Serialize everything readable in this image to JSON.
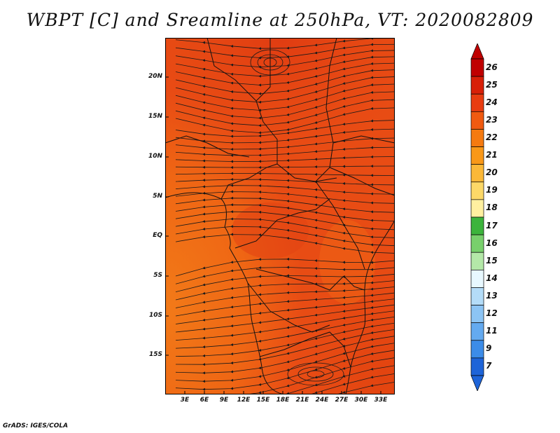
{
  "title": "WBPT [C] and Sreamline at 250hPa, VT: 2020082809",
  "footer": "GrADS: IGES/COLA",
  "lat_labels": [
    "20N",
    "15N",
    "10N",
    "5N",
    "EQ",
    "5S",
    "10S",
    "15S"
  ],
  "lon_labels": [
    "3E",
    "6E",
    "9E",
    "12E",
    "15E",
    "18E",
    "21E",
    "24E",
    "27E",
    "30E",
    "33E"
  ],
  "colorbar": {
    "labels": [
      "26",
      "25",
      "24",
      "23",
      "22",
      "21",
      "20",
      "19",
      "18",
      "17",
      "16",
      "15",
      "14",
      "13",
      "12",
      "11",
      "9",
      "7"
    ],
    "colors": [
      "#c00000",
      "#d82008",
      "#e83c10",
      "#f05a10",
      "#f57a10",
      "#f99818",
      "#fbb838",
      "#fcd868",
      "#fff0a0",
      "#3cb43c",
      "#78d06c",
      "#b4e8a8",
      "#e8f8ff",
      "#b4dcf8",
      "#8cc4f4",
      "#64aaf0",
      "#3c8ce8",
      "#1e64d8"
    ]
  },
  "map": {
    "field": "WBPT",
    "units": "C",
    "level": "250hPa",
    "valid_time": "2020082809",
    "lon_range": [
      0,
      35
    ],
    "lat_range": [
      -20,
      25
    ]
  }
}
